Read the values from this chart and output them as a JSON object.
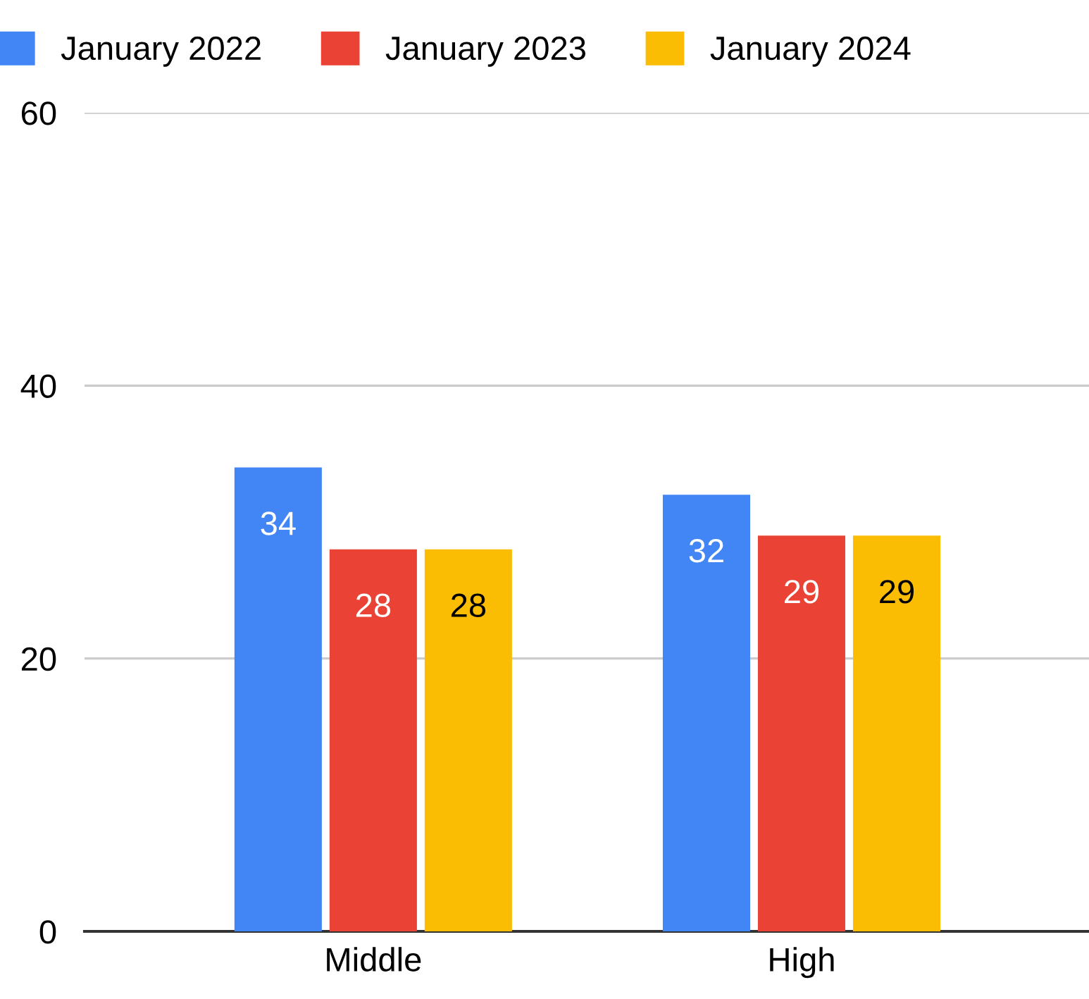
{
  "chart_data": {
    "type": "bar",
    "categories": [
      "Middle",
      "High"
    ],
    "series": [
      {
        "name": "January 2022",
        "color": "#4285f4",
        "values": [
          34,
          32
        ]
      },
      {
        "name": "January 2023",
        "color": "#ea4335",
        "values": [
          28,
          29
        ]
      },
      {
        "name": "January 2024",
        "color": "#fbbc04",
        "values": [
          28,
          29
        ]
      }
    ],
    "ylim": [
      0,
      60
    ],
    "yticks": [
      0,
      20,
      40,
      60
    ],
    "grid": "y",
    "legend": "top left",
    "data_labels": true
  }
}
